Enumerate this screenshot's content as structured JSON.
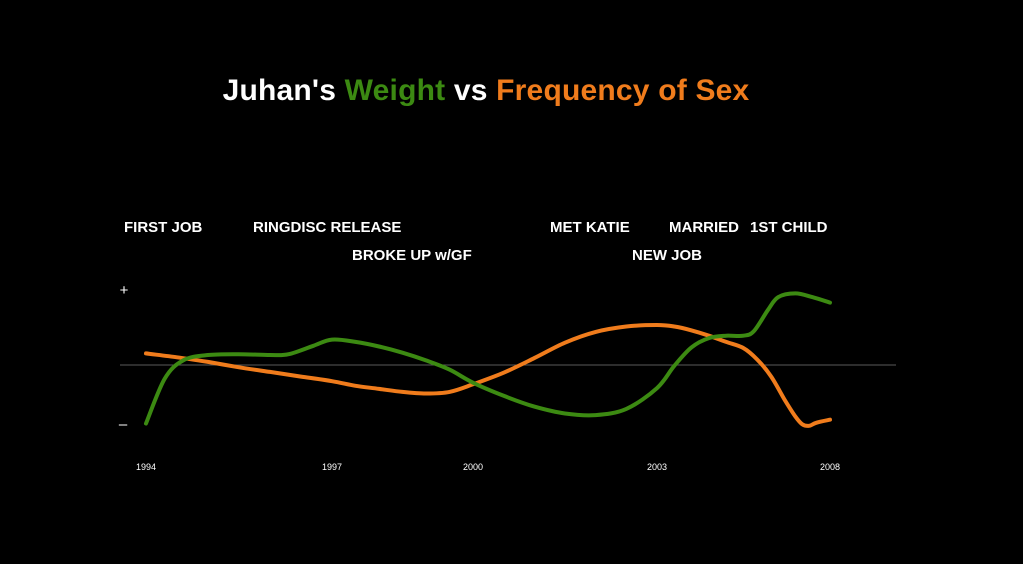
{
  "colors": {
    "background": "#000000",
    "weight": "#3c8a12",
    "sex": "#f07c1c",
    "text": "#ffffff",
    "baseline": "#5a5a5a"
  },
  "title": {
    "prefix": "Juhan's ",
    "weight": "Weight",
    "middle": " vs ",
    "sex": "Frequency of Sex"
  },
  "chart_data": {
    "type": "line",
    "title": "Juhan's Weight vs Frequency of Sex",
    "xlabel": "",
    "ylabel": "",
    "x_ticks": [
      "1994",
      "1997",
      "2000",
      "2003",
      "2008"
    ],
    "y_ticks": [
      "+",
      "–"
    ],
    "ylim": [
      -1,
      1
    ],
    "xlim": [
      1994,
      2008
    ],
    "grid": false,
    "baseline": 0,
    "series": [
      {
        "name": "Weight",
        "color": "#3c8a12",
        "x": [
          1994.0,
          1994.3,
          1994.6,
          1995.0,
          1995.5,
          1996.0,
          1996.3,
          1996.7,
          1997.0,
          1997.5,
          1998.0,
          1998.5,
          1999.0,
          1999.5,
          2000.0,
          2000.5,
          2001.0,
          2001.5,
          2002.0,
          2002.5,
          2003.0,
          2003.5,
          2004.0,
          2004.5,
          2005.0,
          2005.5,
          2005.8,
          2006.2,
          2006.5,
          2007.0,
          2007.5,
          2008.0
        ],
        "values": [
          -0.76,
          -0.18,
          0.06,
          0.13,
          0.14,
          0.13,
          0.14,
          0.25,
          0.33,
          0.3,
          0.24,
          0.16,
          0.06,
          -0.06,
          -0.23,
          -0.4,
          -0.54,
          -0.63,
          -0.65,
          -0.57,
          -0.3,
          -0.01,
          0.23,
          0.35,
          0.38,
          0.38,
          0.44,
          0.71,
          0.88,
          0.93,
          0.88,
          0.81
        ]
      },
      {
        "name": "Frequency of Sex",
        "color": "#f07c1c",
        "x": [
          1994.0,
          1994.5,
          1995.0,
          1995.5,
          1996.0,
          1996.5,
          1997.0,
          1997.5,
          1998.0,
          1998.5,
          1999.0,
          1999.5,
          2000.0,
          2000.5,
          2001.0,
          2001.5,
          2002.0,
          2002.5,
          2003.0,
          2003.5,
          2004.0,
          2004.5,
          2005.0,
          2005.5,
          2005.9,
          2006.3,
          2006.7,
          2007.0,
          2007.2,
          2007.4,
          2007.6,
          2008.0
        ],
        "values": [
          0.15,
          0.1,
          0.04,
          -0.03,
          -0.09,
          -0.15,
          -0.21,
          -0.27,
          -0.31,
          -0.35,
          -0.37,
          -0.35,
          -0.25,
          -0.1,
          0.09,
          0.29,
          0.43,
          0.5,
          0.52,
          0.5,
          0.45,
          0.38,
          0.3,
          0.22,
          0.07,
          -0.15,
          -0.46,
          -0.67,
          -0.77,
          -0.79,
          -0.75,
          -0.71
        ]
      }
    ],
    "annotations": [
      {
        "text": "FIRST JOB",
        "x": 1994.0,
        "row": 1
      },
      {
        "text": "RINGDISC RELEASE",
        "x": 1996.4,
        "row": 1
      },
      {
        "text": "BROKE UP w/GF",
        "x": 1998.5,
        "row": 2
      },
      {
        "text": "MET KATIE",
        "x": 2001.9,
        "row": 1
      },
      {
        "text": "NEW JOB",
        "x": 2003.5,
        "row": 2
      },
      {
        "text": "MARRIED",
        "x": 2004.8,
        "row": 1
      },
      {
        "text": "1ST CHILD",
        "x": 2006.3,
        "row": 1
      }
    ]
  }
}
